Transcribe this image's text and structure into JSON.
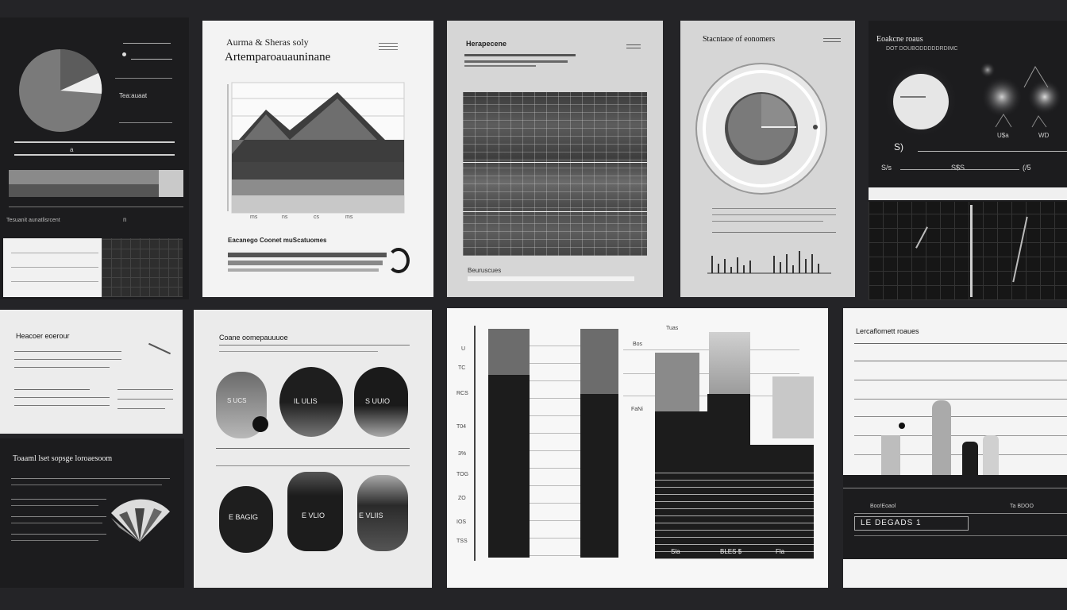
{
  "panels": {
    "p1": {
      "label_a": "Tea:auaat",
      "label_b": "a",
      "label_c": "Tesuanit aunatlisrcent",
      "label_d": "n"
    },
    "p2": {
      "title_line1": "Aurma & Sheras soly",
      "title_line2": "Artemparoauauninane",
      "ticks": [
        "ms",
        "ns",
        "cs",
        "ms"
      ],
      "subtitle": "Eacanego Coonet muScatuomes"
    },
    "p3": {
      "title": "Herapecene",
      "footer": "Beuruscues"
    },
    "p4": {
      "title": "Stacntaoe of eonomers"
    },
    "p5": {
      "title": "Eoakcne roaus",
      "subtitle": "DOT DOUBODDDDDRDIMC",
      "label_a": "S$S",
      "label_b": "WD",
      "label_c": "S)",
      "label_d": "U$a",
      "label_e": "S/s",
      "label_f": "(/5"
    },
    "p6": {
      "title": "Heacoer eoerour"
    },
    "p7": {
      "title": "Toaaml lset sopsge loroaesoom"
    },
    "p8": {
      "title": "Coane oomepauuuoe",
      "shapes": [
        "S UCS",
        "IL ULIS",
        "S UUIO",
        "E BAGIG",
        "E VLIO",
        "E VLIIS"
      ]
    },
    "p9": {
      "y_ticks": [
        "U",
        "TC",
        "RCS",
        "T04",
        "3%",
        "TOG",
        "ZO",
        "IOS",
        "TSS",
        "STD"
      ],
      "col_labels": [
        "Tuas",
        "Bos",
        "FaNi"
      ],
      "x_labels": [
        "Sla",
        "BLES $",
        "Fla"
      ]
    },
    "p10": {
      "title": "Lercaflomett roaues",
      "legend_row": "LE DEGADS 1",
      "label_a": "Boo!Eoaol",
      "label_b": "Ta BDOO"
    }
  },
  "colors": {
    "background": "#242427",
    "dark_card": "#1c1c1e",
    "light_card": "#f3f3f3",
    "grey_card": "#d6d6d6"
  }
}
